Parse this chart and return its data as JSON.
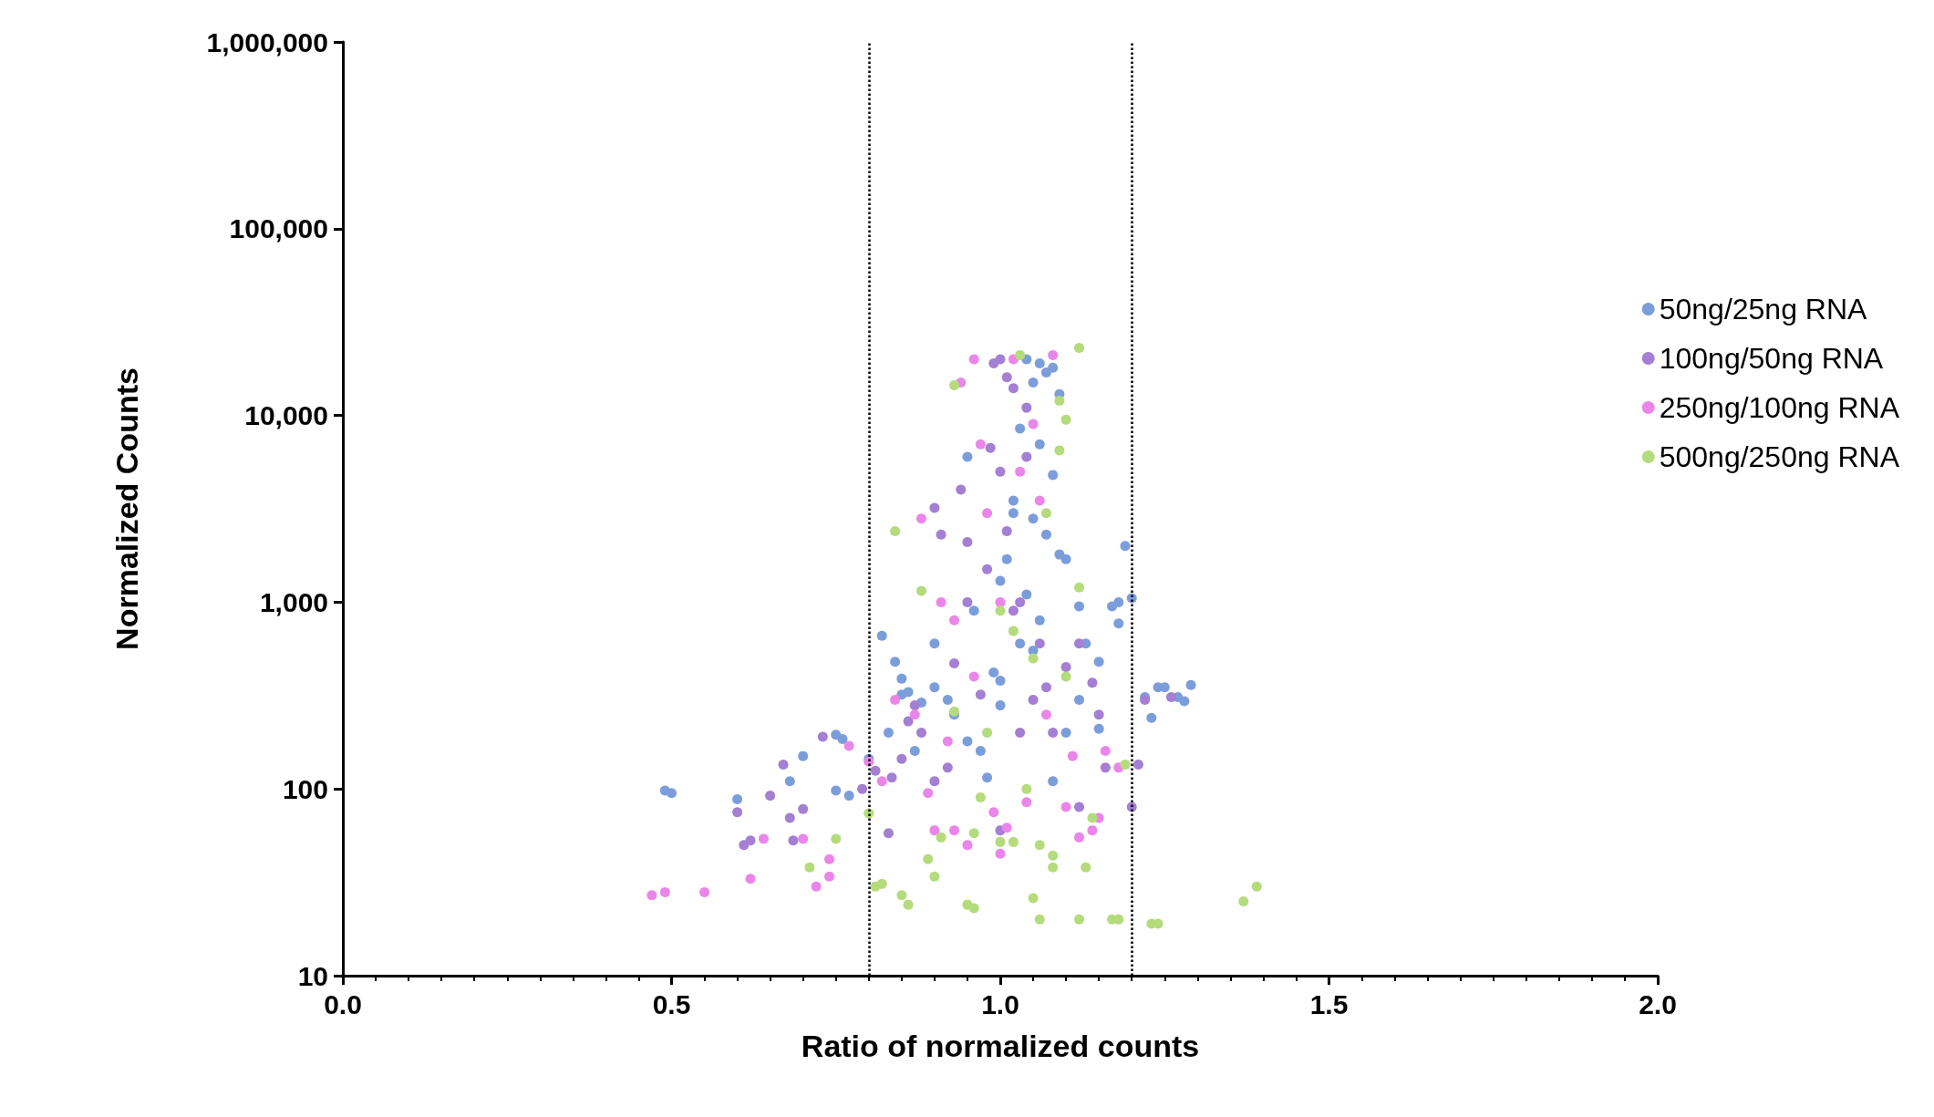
{
  "chart_data": {
    "type": "scatter",
    "xlabel": "Ratio of normalized counts",
    "ylabel": "Normalized Counts",
    "log": "y",
    "grid": false,
    "legend": "right",
    "marker": "circle",
    "xlim": [
      0,
      2
    ],
    "xticks": [
      {
        "value": 0,
        "label": "0.0"
      },
      {
        "value": 0.5,
        "label": "0.5"
      },
      {
        "value": 1,
        "label": "1.0"
      },
      {
        "value": 1.5,
        "label": "1.5"
      },
      {
        "value": 2,
        "label": "2.0"
      }
    ],
    "ylim": [
      10,
      1000000
    ],
    "yticks": [
      10,
      100,
      {
        "value": 1000,
        "label": "1,000"
      },
      {
        "value": 10000,
        "label": "10,000"
      },
      {
        "value": 100000,
        "label": "100,000"
      },
      {
        "value": 1000000,
        "label": "1,000,000"
      }
    ],
    "ref_lines": [
      {
        "axis": "x",
        "value": 0.8,
        "color": "#000000",
        "line_style": "dotted"
      },
      {
        "axis": "x",
        "value": 1.2,
        "color": "#000000",
        "line_style": "dotted"
      }
    ],
    "series": [
      {
        "name": "50ng/25ng RNA",
        "color": "#7b9edb",
        "x": [
          0.49,
          0.5,
          0.6,
          0.68,
          0.7,
          0.75,
          0.76,
          0.75,
          0.77,
          0.8,
          0.82,
          0.83,
          0.84,
          0.85,
          0.85,
          0.86,
          0.87,
          0.88,
          0.9,
          0.9,
          0.92,
          0.93,
          0.95,
          0.95,
          0.97,
          0.98,
          1.0,
          1.0,
          1.02,
          1.03,
          1.03,
          1.04,
          1.05,
          1.06,
          1.07,
          1.08,
          1.09,
          1.06,
          1.08,
          1.05,
          1.07,
          1.1,
          1.12,
          1.13,
          1.15,
          1.17,
          1.18,
          1.19,
          1.18,
          1.2,
          1.22,
          1.23,
          1.24,
          1.25,
          1.27,
          1.29,
          1.28,
          1.1,
          1.12,
          1.15,
          1.08,
          1.05,
          1.0,
          0.99,
          1.02,
          1.04,
          1.06,
          0.96,
          1.01,
          1.09
        ],
        "values": [
          98,
          95,
          88,
          110,
          150,
          195,
          185,
          98,
          92,
          145,
          660,
          200,
          480,
          320,
          390,
          330,
          160,
          290,
          600,
          350,
          300,
          250,
          180,
          6000,
          160,
          115,
          1300,
          280,
          3500,
          8500,
          600,
          20000,
          15000,
          19000,
          17000,
          18000,
          13000,
          7000,
          4800,
          2800,
          2300,
          1700,
          950,
          600,
          480,
          950,
          1000,
          2000,
          770,
          1050,
          310,
          240,
          350,
          350,
          310,
          360,
          295,
          200,
          300,
          210,
          110,
          550,
          380,
          420,
          3000,
          1100,
          800,
          900,
          1700,
          1800
        ]
      },
      {
        "name": "100ng/50ng RNA",
        "color": "#a47fd3",
        "x": [
          0.6,
          0.61,
          0.62,
          0.65,
          0.67,
          0.68,
          0.7,
          0.685,
          0.73,
          0.79,
          0.81,
          0.835,
          0.83,
          0.85,
          0.86,
          0.87,
          0.9,
          0.91,
          0.93,
          0.94,
          0.95,
          0.985,
          0.99,
          1.0,
          1.01,
          1.02,
          1.04,
          1.0,
          1.02,
          1.03,
          1.0,
          1.05,
          1.06,
          1.08,
          1.1,
          1.12,
          1.14,
          1.15,
          1.16,
          1.2,
          1.21,
          1.22,
          1.26,
          1.12,
          0.98,
          0.97,
          0.92,
          0.9,
          1.03,
          1.07,
          0.95,
          1.01,
          1.04,
          0.88
        ],
        "values": [
          75,
          50,
          53,
          92,
          135,
          70,
          78,
          53,
          190,
          100,
          125,
          115,
          58,
          145,
          230,
          280,
          3200,
          2300,
          470,
          4000,
          2100,
          6700,
          19000,
          20000,
          16000,
          14000,
          11000,
          5000,
          900,
          200,
          60,
          300,
          600,
          200,
          450,
          600,
          370,
          250,
          130,
          80,
          135,
          300,
          310,
          80,
          1500,
          320,
          130,
          110,
          1000,
          350,
          1000,
          2400,
          6000,
          200
        ]
      },
      {
        "name": "250ng/100ng RNA",
        "color": "#ea86ea",
        "x": [
          0.47,
          0.49,
          0.55,
          0.62,
          0.64,
          0.7,
          0.72,
          0.74,
          0.74,
          0.77,
          0.8,
          0.82,
          0.84,
          0.87,
          0.88,
          0.91,
          0.92,
          0.93,
          0.94,
          0.95,
          0.96,
          0.97,
          0.98,
          0.99,
          1.0,
          1.01,
          1.02,
          1.03,
          1.05,
          1.06,
          1.08,
          1.1,
          1.12,
          1.14,
          1.15,
          1.16,
          1.18,
          0.89,
          0.9,
          1.0,
          1.04,
          0.96,
          1.07,
          1.11,
          0.93
        ],
        "values": [
          27,
          28,
          28,
          33,
          54,
          54,
          30,
          34,
          42,
          170,
          140,
          110,
          300,
          250,
          2800,
          1000,
          180,
          60,
          15000,
          50,
          20000,
          7000,
          3000,
          75,
          45,
          62,
          20000,
          5000,
          9000,
          3500,
          21000,
          80,
          55,
          60,
          70,
          160,
          130,
          95,
          60,
          1000,
          85,
          400,
          250,
          150,
          800
        ]
      },
      {
        "name": "500ng/250ng RNA",
        "color": "#b4db7c",
        "x": [
          0.71,
          0.75,
          0.8,
          0.81,
          0.82,
          0.85,
          0.86,
          0.84,
          0.88,
          0.89,
          0.9,
          0.91,
          0.93,
          0.95,
          0.96,
          0.96,
          0.97,
          1.0,
          1.02,
          1.03,
          1.04,
          1.05,
          1.06,
          1.06,
          1.08,
          1.08,
          1.09,
          1.1,
          1.12,
          1.12,
          1.13,
          1.14,
          1.17,
          1.18,
          1.19,
          1.23,
          1.24,
          1.37,
          1.39,
          1.0,
          1.05,
          1.07,
          1.09,
          0.98,
          1.1,
          1.12,
          1.02,
          0.93
        ],
        "values": [
          38,
          54,
          74,
          30,
          31,
          27,
          24,
          2400,
          1150,
          42,
          34,
          55,
          14500,
          24,
          23,
          58,
          90,
          52,
          52,
          21000,
          100,
          26,
          20,
          50,
          44,
          38,
          12000,
          9500,
          23000,
          20,
          38,
          70,
          20,
          20,
          135,
          19,
          19,
          25,
          30,
          900,
          500,
          3000,
          6500,
          200,
          400,
          1200,
          700,
          260
        ]
      }
    ]
  }
}
